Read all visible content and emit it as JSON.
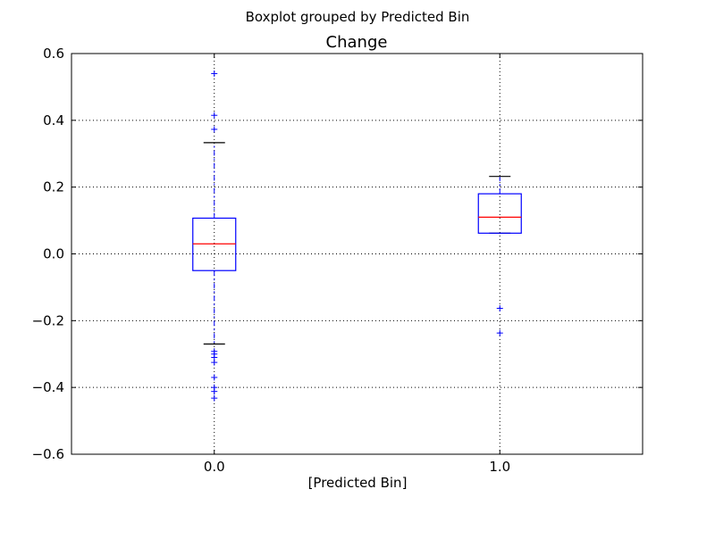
{
  "chart_data": {
    "type": "boxplot",
    "suptitle": "Boxplot grouped by Predicted Bin",
    "title": "Change",
    "xlabel": "[Predicted Bin]",
    "ylabel": "",
    "categories": [
      "0.0",
      "1.0"
    ],
    "ylim": [
      -0.6,
      0.6
    ],
    "yticks": [
      -0.6,
      -0.4,
      -0.2,
      0.0,
      0.2,
      0.4,
      0.6
    ],
    "ytick_labels": [
      "−0.6",
      "−0.4",
      "−0.2",
      "0.0",
      "0.2",
      "0.4",
      "0.6"
    ],
    "grid": true,
    "boxes": [
      {
        "category": "0.0",
        "whisker_low": -0.27,
        "q1": -0.05,
        "median": 0.03,
        "q3": 0.107,
        "whisker_high": 0.333,
        "fliers": [
          0.54,
          0.415,
          0.373,
          -0.292,
          -0.3,
          -0.31,
          -0.325,
          -0.37,
          -0.4,
          -0.412,
          -0.432
        ]
      },
      {
        "category": "1.0",
        "whisker_low": 0.062,
        "q1": 0.062,
        "median": 0.11,
        "q3": 0.18,
        "whisker_high": 0.232,
        "fliers": [
          -0.163,
          -0.237
        ]
      }
    ],
    "colors": {
      "box": "#0000ff",
      "median": "#ff0000",
      "whisker": "#0000ff",
      "cap": "#000000",
      "flier": "#0000ff",
      "grid": "#000000"
    }
  }
}
